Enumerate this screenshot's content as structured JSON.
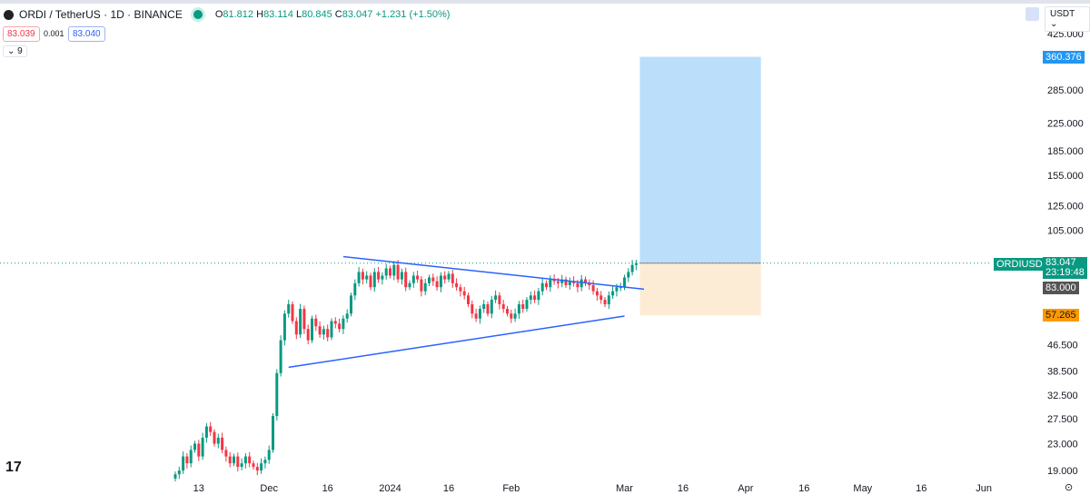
{
  "header": {
    "symbol": "ORDI / TetherUS · 1D · BINANCE",
    "open_label": "O",
    "open": "81.812",
    "high_label": "H",
    "high": "83.114",
    "low_label": "L",
    "low": "80.845",
    "close_label": "C",
    "close": "83.047",
    "change": "+1.231 (+1.50%)",
    "bid": "83.039",
    "spread": "0.001",
    "ask": "83.040",
    "indicators_toggle": "⌄ 9"
  },
  "currency": "USDT",
  "colors": {
    "up": "#089981",
    "down": "#f23645",
    "trendline": "#2962ff",
    "target": "#bbdefb",
    "stop": "#fdecd5"
  },
  "tags": {
    "symbol": "ORDIUSDT",
    "price": "83.047",
    "countdown": "23:19:48",
    "line_price": "83.000",
    "target": "360.376",
    "stop": "57.265"
  },
  "chart_data": {
    "type": "candlestick",
    "scale": "log",
    "start_date": "2023-11-07",
    "closes": [
      18.5,
      19,
      21,
      20,
      22,
      23,
      21,
      24,
      26,
      25,
      23,
      24,
      22,
      21,
      20,
      21,
      19.5,
      20,
      21,
      20,
      19.5,
      19,
      20,
      20.5,
      22,
      28,
      38,
      48,
      58,
      62,
      55,
      50,
      60,
      52,
      48,
      56,
      53,
      50,
      52,
      49,
      55,
      54,
      52,
      56,
      58,
      66,
      72,
      78,
      74,
      76,
      70,
      78,
      74,
      76,
      80,
      76,
      82,
      74,
      78,
      70,
      72,
      76,
      74,
      68,
      72,
      75,
      73,
      70,
      76,
      74,
      77,
      72,
      70,
      68,
      66,
      62,
      58,
      56,
      60,
      62,
      58,
      64,
      66,
      62,
      60,
      58,
      56,
      58,
      62,
      60,
      64,
      66,
      64,
      68,
      72,
      70,
      74,
      73,
      72,
      74,
      71,
      73,
      72,
      70,
      74,
      72,
      71,
      68,
      66,
      64,
      62,
      66,
      68,
      70,
      70,
      75,
      78,
      82,
      83.047
    ],
    "y_ticks": [
      "425.000",
      "285.000",
      "225.000",
      "185.000",
      "155.000",
      "125.000",
      "105.000",
      "46.500",
      "38.500",
      "32.500",
      "27.500",
      "23.000",
      "19.000"
    ],
    "y_tick_values": [
      425,
      285,
      225,
      185,
      155,
      125,
      105,
      46.5,
      38.5,
      32.5,
      27.5,
      23,
      19
    ],
    "x_ticks": [
      {
        "label": "13",
        "day": 6
      },
      {
        "label": "Dec",
        "day": 24
      },
      {
        "label": "16",
        "day": 39
      },
      {
        "label": "2024",
        "day": 55
      },
      {
        "label": "16",
        "day": 70
      },
      {
        "label": "Feb",
        "day": 86
      },
      {
        "label": "Mar",
        "day": 115
      },
      {
        "label": "16",
        "day": 130
      },
      {
        "label": "Apr",
        "day": 146
      },
      {
        "label": "16",
        "day": 161
      },
      {
        "label": "May",
        "day": 176
      },
      {
        "label": "16",
        "day": 191
      },
      {
        "label": "Jun",
        "day": 207
      }
    ],
    "trendlines": [
      {
        "from": {
          "day": 43,
          "price": 87
        },
        "to": {
          "day": 120,
          "price": 69
        }
      },
      {
        "from": {
          "day": 29,
          "price": 39.6
        },
        "to": {
          "day": 115,
          "price": 57
        }
      }
    ],
    "long_position": {
      "from_day": 118,
      "to_day": 149,
      "entry": 83.047,
      "target": 360.376,
      "stop": 57.265
    },
    "last_price": 83.047
  }
}
